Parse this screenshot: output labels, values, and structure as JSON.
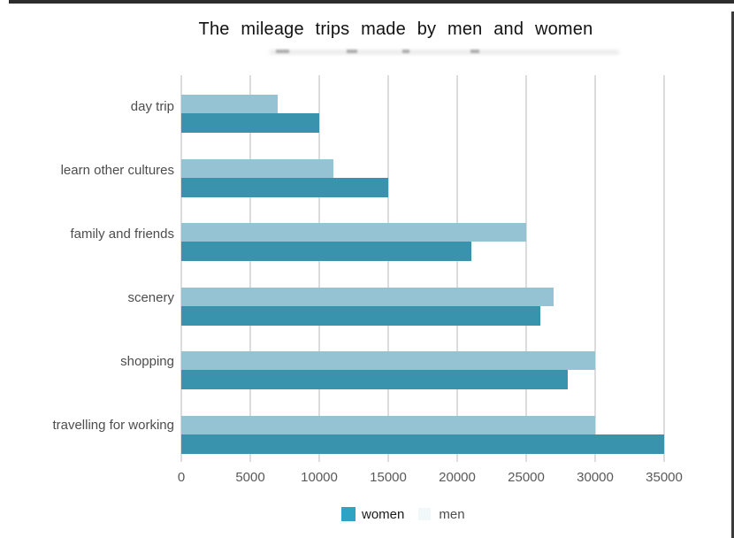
{
  "title": "The mileage trips made by men and women",
  "legend": {
    "women_label": "women",
    "men_label": "men",
    "women_swatch_color": "#2fa3c4",
    "men_swatch_color": "#f2f7fa"
  },
  "chart_data": {
    "type": "bar",
    "orientation": "horizontal",
    "title": "The mileage trips made by men and women",
    "categories": [
      "day trip",
      "learn other cultures",
      "family and friends",
      "scenery",
      "shopping",
      "travelling for working"
    ],
    "series": [
      {
        "name": "men",
        "color": "#95c3d4",
        "values": [
          7000,
          11000,
          25000,
          27000,
          30000,
          30000
        ]
      },
      {
        "name": "women",
        "color": "#3a93ad",
        "values": [
          10000,
          15000,
          21000,
          26000,
          28000,
          35000
        ]
      }
    ],
    "xlim": [
      0,
      35000
    ],
    "x_tick_labels": [
      "0",
      "5000",
      "10000",
      "15000",
      "20000",
      "25000",
      "30000",
      "35000"
    ],
    "grid": true,
    "gridline_color": "#dcdcdc",
    "legend_position": "bottom",
    "bar_order_note": "men (light) bar drawn above women (dark) bar in each category group"
  }
}
